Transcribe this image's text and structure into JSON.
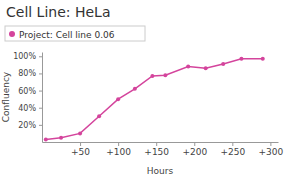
{
  "chart_data": {
    "type": "line",
    "title": "Cell Line: HeLa",
    "x_label": "Hours",
    "y_label": "Confluency",
    "x": [
      5,
      25,
      50,
      75,
      100,
      122,
      145,
      162,
      192,
      215,
      238,
      262,
      290
    ],
    "series": [
      {
        "name": "Project: Cell line 0.06",
        "color": "#d4449c",
        "marker": "circle",
        "values": [
          3,
          5,
          10,
          30,
          50,
          62,
          77,
          78,
          88,
          86,
          91,
          97,
          97
        ]
      }
    ],
    "xlim": [
      0,
      310
    ],
    "xticks": [
      {
        "value": 50,
        "label": "+50"
      },
      {
        "value": 100,
        "label": "+100"
      },
      {
        "value": 150,
        "label": "+150"
      },
      {
        "value": 200,
        "label": "+200"
      },
      {
        "value": 250,
        "label": "+250"
      },
      {
        "value": 300,
        "label": "+300"
      }
    ],
    "ylim": [
      0,
      105
    ],
    "yticks": [
      {
        "value": 20,
        "label": "20%"
      },
      {
        "value": 40,
        "label": "40%"
      },
      {
        "value": 60,
        "label": "60%"
      },
      {
        "value": 80,
        "label": "80%"
      },
      {
        "value": 100,
        "label": "100%"
      }
    ],
    "grid": false,
    "legend": "top-left"
  }
}
